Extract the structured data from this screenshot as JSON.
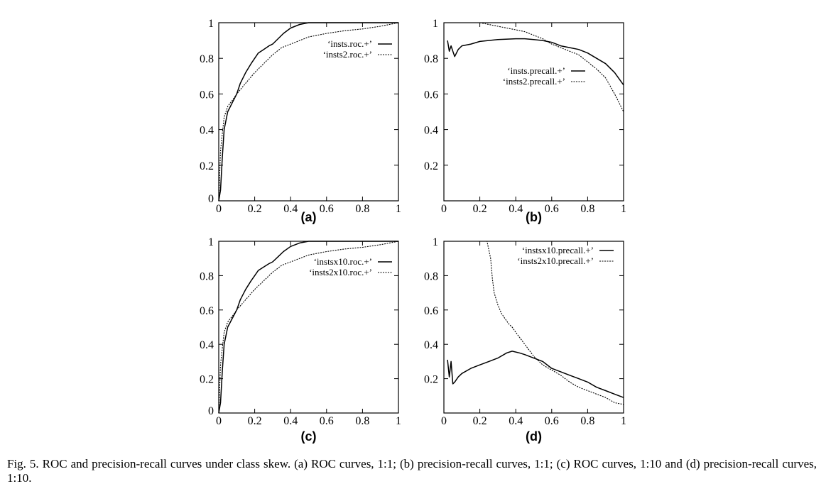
{
  "caption": "Fig. 5.  ROC and precision-recall curves under class skew. (a) ROC curves, 1:1; (b) precision-recall curves, 1:1; (c) ROC curves, 1:10 and (d) precision-recall curves, 1:10.",
  "colors": {
    "line": "#000000",
    "background": "#ffffff"
  },
  "chart_data": [
    {
      "id": "a",
      "type": "line",
      "label": "(a)",
      "xlim": [
        0,
        1
      ],
      "ylim": [
        0,
        1
      ],
      "xticks": [
        0,
        0.2,
        0.4,
        0.6,
        0.8,
        1
      ],
      "xtick_labels": [
        "0",
        "0.2",
        "0.4",
        "0.6",
        "0.8",
        "1"
      ],
      "yticks": [
        0,
        0.2,
        0.4,
        0.6,
        0.8,
        1
      ],
      "ytick_labels": [
        "0",
        "0.2",
        "0.4",
        "0.6",
        "0.8",
        "1"
      ],
      "legend_position": "top-right",
      "series": [
        {
          "name": "‘insts.roc.+’",
          "style": "solid",
          "x": [
            0,
            0.01,
            0.02,
            0.03,
            0.05,
            0.08,
            0.1,
            0.12,
            0.15,
            0.18,
            0.2,
            0.22,
            0.25,
            0.28,
            0.3,
            0.33,
            0.36,
            0.4,
            0.45,
            0.5,
            0.55,
            0.6,
            0.7,
            0.8,
            0.9,
            1
          ],
          "y": [
            0,
            0.06,
            0.25,
            0.4,
            0.5,
            0.56,
            0.6,
            0.66,
            0.72,
            0.77,
            0.8,
            0.83,
            0.85,
            0.87,
            0.88,
            0.91,
            0.94,
            0.97,
            0.99,
            1,
            1,
            1,
            1,
            1,
            1,
            1
          ]
        },
        {
          "name": "‘insts2.roc.+’",
          "style": "dotted",
          "x": [
            0,
            0.01,
            0.02,
            0.03,
            0.05,
            0.08,
            0.1,
            0.15,
            0.2,
            0.25,
            0.3,
            0.35,
            0.4,
            0.45,
            0.5,
            0.55,
            0.6,
            0.7,
            0.8,
            0.9,
            0.95,
            1
          ],
          "y": [
            0,
            0.28,
            0.38,
            0.47,
            0.53,
            0.57,
            0.6,
            0.66,
            0.72,
            0.77,
            0.82,
            0.86,
            0.88,
            0.9,
            0.92,
            0.93,
            0.94,
            0.955,
            0.965,
            0.98,
            0.99,
            1
          ]
        }
      ]
    },
    {
      "id": "b",
      "type": "line",
      "label": "(b)",
      "xlim": [
        0,
        1
      ],
      "ylim": [
        0,
        1
      ],
      "xticks": [
        0,
        0.2,
        0.4,
        0.6,
        0.8,
        1
      ],
      "xtick_labels": [
        "0",
        "0.2",
        "0.4",
        "0.6",
        "0.8",
        "1"
      ],
      "yticks": [
        0.2,
        0.4,
        0.6,
        0.8,
        1
      ],
      "ytick_labels": [
        "0.2",
        "0.4",
        "0.6",
        "0.8",
        "1"
      ],
      "legend_position": "center-right",
      "series": [
        {
          "name": "‘insts.precall.+’",
          "style": "solid",
          "x": [
            0.02,
            0.03,
            0.04,
            0.05,
            0.06,
            0.08,
            0.1,
            0.15,
            0.2,
            0.3,
            0.4,
            0.45,
            0.5,
            0.55,
            0.6,
            0.65,
            0.7,
            0.75,
            0.8,
            0.85,
            0.9,
            0.95,
            1
          ],
          "y": [
            0.9,
            0.84,
            0.87,
            0.84,
            0.81,
            0.85,
            0.87,
            0.88,
            0.895,
            0.905,
            0.91,
            0.91,
            0.905,
            0.9,
            0.89,
            0.87,
            0.86,
            0.85,
            0.83,
            0.8,
            0.77,
            0.72,
            0.65
          ]
        },
        {
          "name": "‘insts2.precall.+’",
          "style": "dotted",
          "x": [
            0.02,
            0.1,
            0.2,
            0.25,
            0.3,
            0.35,
            0.4,
            0.45,
            0.5,
            0.55,
            0.6,
            0.65,
            0.7,
            0.75,
            0.8,
            0.85,
            0.9,
            0.95,
            1
          ],
          "y": [
            1,
            1,
            1,
            0.99,
            0.98,
            0.97,
            0.96,
            0.95,
            0.93,
            0.91,
            0.88,
            0.86,
            0.84,
            0.82,
            0.78,
            0.74,
            0.69,
            0.6,
            0.5
          ]
        }
      ]
    },
    {
      "id": "c",
      "type": "line",
      "label": "(c)",
      "xlim": [
        0,
        1
      ],
      "ylim": [
        0,
        1
      ],
      "xticks": [
        0,
        0.2,
        0.4,
        0.6,
        0.8,
        1
      ],
      "xtick_labels": [
        "0",
        "0.2",
        "0.4",
        "0.6",
        "0.8",
        "1"
      ],
      "yticks": [
        0,
        0.2,
        0.4,
        0.6,
        0.8,
        1
      ],
      "ytick_labels": [
        "0",
        "0.2",
        "0.4",
        "0.6",
        "0.8",
        "1"
      ],
      "legend_position": "top-right",
      "series": [
        {
          "name": "‘instsx10.roc.+’",
          "style": "solid",
          "x": [
            0,
            0.01,
            0.02,
            0.03,
            0.05,
            0.08,
            0.1,
            0.12,
            0.15,
            0.18,
            0.2,
            0.22,
            0.25,
            0.28,
            0.3,
            0.33,
            0.36,
            0.4,
            0.45,
            0.5,
            0.55,
            0.6,
            0.7,
            0.8,
            0.9,
            1
          ],
          "y": [
            0,
            0.06,
            0.25,
            0.4,
            0.5,
            0.56,
            0.6,
            0.66,
            0.72,
            0.77,
            0.8,
            0.83,
            0.85,
            0.87,
            0.88,
            0.91,
            0.94,
            0.97,
            0.99,
            1,
            1,
            1,
            1,
            1,
            1,
            1
          ]
        },
        {
          "name": "‘insts2x10.roc.+’",
          "style": "dotted",
          "x": [
            0,
            0.01,
            0.02,
            0.03,
            0.05,
            0.08,
            0.1,
            0.15,
            0.2,
            0.25,
            0.3,
            0.35,
            0.4,
            0.45,
            0.5,
            0.55,
            0.6,
            0.7,
            0.8,
            0.9,
            0.95,
            1
          ],
          "y": [
            0,
            0.28,
            0.38,
            0.47,
            0.53,
            0.57,
            0.6,
            0.66,
            0.72,
            0.77,
            0.82,
            0.86,
            0.88,
            0.9,
            0.92,
            0.93,
            0.94,
            0.955,
            0.965,
            0.98,
            0.99,
            1
          ]
        }
      ]
    },
    {
      "id": "d",
      "type": "line",
      "label": "(d)",
      "xlim": [
        0,
        1
      ],
      "ylim": [
        0,
        1
      ],
      "xticks": [
        0,
        0.2,
        0.4,
        0.6,
        0.8,
        1
      ],
      "xtick_labels": [
        "0",
        "0.2",
        "0.4",
        "0.6",
        "0.8",
        "1"
      ],
      "yticks": [
        0.2,
        0.4,
        0.6,
        0.8,
        1
      ],
      "ytick_labels": [
        "0.2",
        "0.4",
        "0.6",
        "0.8",
        "1"
      ],
      "legend_position": "top-right",
      "series": [
        {
          "name": "‘instsx10.precall.+’",
          "style": "solid",
          "x": [
            0.02,
            0.03,
            0.04,
            0.05,
            0.06,
            0.08,
            0.1,
            0.15,
            0.2,
            0.25,
            0.3,
            0.35,
            0.38,
            0.42,
            0.45,
            0.5,
            0.55,
            0.6,
            0.65,
            0.7,
            0.75,
            0.8,
            0.85,
            0.9,
            0.95,
            1
          ],
          "y": [
            0.31,
            0.21,
            0.3,
            0.17,
            0.18,
            0.21,
            0.23,
            0.26,
            0.28,
            0.3,
            0.32,
            0.35,
            0.36,
            0.35,
            0.34,
            0.32,
            0.3,
            0.26,
            0.24,
            0.22,
            0.2,
            0.18,
            0.15,
            0.13,
            0.11,
            0.09
          ]
        },
        {
          "name": "‘insts2x10.precall.+’",
          "style": "dotted",
          "x": [
            0,
            0.2,
            0.24,
            0.26,
            0.27,
            0.28,
            0.3,
            0.32,
            0.34,
            0.36,
            0.38,
            0.4,
            0.45,
            0.5,
            0.55,
            0.6,
            0.65,
            0.7,
            0.75,
            0.8,
            0.85,
            0.9,
            0.95,
            1
          ],
          "y": [
            1,
            1,
            1,
            0.9,
            0.78,
            0.7,
            0.63,
            0.58,
            0.55,
            0.52,
            0.5,
            0.47,
            0.4,
            0.33,
            0.28,
            0.25,
            0.22,
            0.18,
            0.15,
            0.13,
            0.11,
            0.09,
            0.06,
            0.05
          ]
        }
      ]
    }
  ]
}
